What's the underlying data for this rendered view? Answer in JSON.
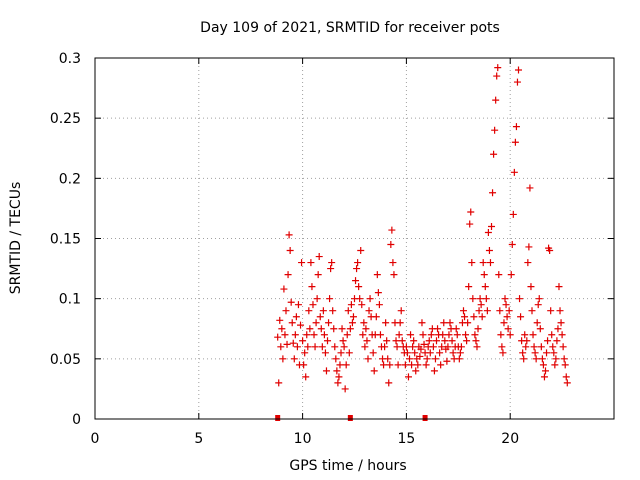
{
  "chart_data": {
    "type": "scatter",
    "title": "Day 109 of 2021, SRMTID for receiver pots",
    "xlabel": "GPS time / hours",
    "ylabel": "SRMTID / TECUs",
    "xlim": [
      0,
      25
    ],
    "ylim": [
      0,
      0.3
    ],
    "xticks": [
      0,
      5,
      10,
      15,
      20
    ],
    "yticks": [
      0,
      0.05,
      0.1,
      0.15,
      0.2,
      0.25,
      0.3
    ],
    "x_tick_labels": [
      "0",
      "5",
      "10",
      "15",
      "20"
    ],
    "y_tick_labels": [
      "0",
      "0.05",
      "0.1",
      "0.15",
      "0.2",
      "0.25",
      "0.3"
    ],
    "grid": true,
    "marker": "+",
    "color": "#e00000",
    "baseline_marks_x": [
      8.8,
      12.3,
      15.9
    ],
    "series": [
      {
        "name": "SRMTID",
        "points": [
          [
            8.8,
            0.068
          ],
          [
            8.85,
            0.03
          ],
          [
            8.9,
            0.082
          ],
          [
            8.95,
            0.06
          ],
          [
            9.0,
            0.075
          ],
          [
            9.05,
            0.05
          ],
          [
            9.1,
            0.108
          ],
          [
            9.15,
            0.07
          ],
          [
            9.2,
            0.09
          ],
          [
            9.25,
            0.062
          ],
          [
            9.3,
            0.12
          ],
          [
            9.35,
            0.153
          ],
          [
            9.4,
            0.14
          ],
          [
            9.45,
            0.097
          ],
          [
            9.5,
            0.08
          ],
          [
            9.55,
            0.063
          ],
          [
            9.6,
            0.05
          ],
          [
            9.65,
            0.07
          ],
          [
            9.7,
            0.085
          ],
          [
            9.75,
            0.06
          ],
          [
            9.8,
            0.095
          ],
          [
            9.85,
            0.045
          ],
          [
            9.9,
            0.078
          ],
          [
            9.95,
            0.13
          ],
          [
            10.0,
            0.065
          ],
          [
            10.05,
            0.045
          ],
          [
            10.1,
            0.055
          ],
          [
            10.15,
            0.035
          ],
          [
            10.2,
            0.07
          ],
          [
            10.25,
            0.06
          ],
          [
            10.3,
            0.09
          ],
          [
            10.35,
            0.075
          ],
          [
            10.4,
            0.13
          ],
          [
            10.45,
            0.11
          ],
          [
            10.5,
            0.095
          ],
          [
            10.55,
            0.07
          ],
          [
            10.6,
            0.06
          ],
          [
            10.65,
            0.08
          ],
          [
            10.7,
            0.1
          ],
          [
            10.75,
            0.12
          ],
          [
            10.8,
            0.135
          ],
          [
            10.85,
            0.085
          ],
          [
            10.9,
            0.075
          ],
          [
            10.95,
            0.06
          ],
          [
            11.0,
            0.09
          ],
          [
            11.05,
            0.07
          ],
          [
            11.1,
            0.055
          ],
          [
            11.15,
            0.04
          ],
          [
            11.2,
            0.065
          ],
          [
            11.25,
            0.08
          ],
          [
            11.3,
            0.1
          ],
          [
            11.35,
            0.125
          ],
          [
            11.4,
            0.13
          ],
          [
            11.45,
            0.09
          ],
          [
            11.5,
            0.075
          ],
          [
            11.55,
            0.06
          ],
          [
            11.6,
            0.05
          ],
          [
            11.65,
            0.04
          ],
          [
            11.7,
            0.03
          ],
          [
            11.75,
            0.035
          ],
          [
            11.8,
            0.045
          ],
          [
            11.85,
            0.055
          ],
          [
            11.9,
            0.075
          ],
          [
            11.95,
            0.065
          ],
          [
            12.0,
            0.06
          ],
          [
            12.05,
            0.025
          ],
          [
            12.1,
            0.045
          ],
          [
            12.15,
            0.07
          ],
          [
            12.2,
            0.09
          ],
          [
            12.25,
            0.055
          ],
          [
            12.3,
            0.075
          ],
          [
            12.35,
            0.095
          ],
          [
            12.4,
            0.08
          ],
          [
            12.45,
            0.085
          ],
          [
            12.5,
            0.1
          ],
          [
            12.55,
            0.115
          ],
          [
            12.6,
            0.125
          ],
          [
            12.65,
            0.13
          ],
          [
            12.7,
            0.11
          ],
          [
            12.75,
            0.1
          ],
          [
            12.8,
            0.14
          ],
          [
            12.85,
            0.095
          ],
          [
            12.9,
            0.07
          ],
          [
            12.95,
            0.08
          ],
          [
            13.0,
            0.06
          ],
          [
            13.05,
            0.075
          ],
          [
            13.1,
            0.065
          ],
          [
            13.15,
            0.05
          ],
          [
            13.2,
            0.09
          ],
          [
            13.25,
            0.1
          ],
          [
            13.3,
            0.085
          ],
          [
            13.35,
            0.07
          ],
          [
            13.4,
            0.055
          ],
          [
            13.45,
            0.04
          ],
          [
            13.5,
            0.07
          ],
          [
            13.55,
            0.085
          ],
          [
            13.6,
            0.12
          ],
          [
            13.65,
            0.105
          ],
          [
            13.7,
            0.095
          ],
          [
            13.75,
            0.07
          ],
          [
            13.8,
            0.06
          ],
          [
            13.85,
            0.05
          ],
          [
            13.9,
            0.045
          ],
          [
            13.95,
            0.06
          ],
          [
            14.0,
            0.08
          ],
          [
            14.05,
            0.065
          ],
          [
            14.1,
            0.05
          ],
          [
            14.15,
            0.03
          ],
          [
            14.2,
            0.045
          ],
          [
            14.25,
            0.145
          ],
          [
            14.3,
            0.157
          ],
          [
            14.35,
            0.13
          ],
          [
            14.4,
            0.12
          ],
          [
            14.45,
            0.08
          ],
          [
            14.5,
            0.065
          ],
          [
            14.55,
            0.06
          ],
          [
            14.6,
            0.045
          ],
          [
            14.65,
            0.07
          ],
          [
            14.7,
            0.08
          ],
          [
            14.75,
            0.09
          ],
          [
            14.8,
            0.065
          ],
          [
            14.85,
            0.06
          ],
          [
            14.9,
            0.055
          ],
          [
            14.95,
            0.045
          ],
          [
            15.0,
            0.06
          ],
          [
            15.05,
            0.055
          ],
          [
            15.1,
            0.035
          ],
          [
            15.15,
            0.05
          ],
          [
            15.2,
            0.07
          ],
          [
            15.25,
            0.045
          ],
          [
            15.3,
            0.06
          ],
          [
            15.35,
            0.065
          ],
          [
            15.4,
            0.055
          ],
          [
            15.45,
            0.04
          ],
          [
            15.5,
            0.05
          ],
          [
            15.55,
            0.045
          ],
          [
            15.6,
            0.06
          ],
          [
            15.65,
            0.052
          ],
          [
            15.7,
            0.058
          ],
          [
            15.75,
            0.08
          ],
          [
            15.8,
            0.07
          ],
          [
            15.85,
            0.062
          ],
          [
            15.9,
            0.055
          ],
          [
            15.95,
            0.045
          ],
          [
            16.0,
            0.05
          ],
          [
            16.05,
            0.06
          ],
          [
            16.1,
            0.065
          ],
          [
            16.15,
            0.055
          ],
          [
            16.2,
            0.07
          ],
          [
            16.25,
            0.075
          ],
          [
            16.3,
            0.06
          ],
          [
            16.35,
            0.04
          ],
          [
            16.4,
            0.05
          ],
          [
            16.45,
            0.065
          ],
          [
            16.5,
            0.075
          ],
          [
            16.55,
            0.07
          ],
          [
            16.6,
            0.055
          ],
          [
            16.65,
            0.045
          ],
          [
            16.7,
            0.06
          ],
          [
            16.75,
            0.07
          ],
          [
            16.8,
            0.08
          ],
          [
            16.85,
            0.065
          ],
          [
            16.9,
            0.058
          ],
          [
            16.95,
            0.048
          ],
          [
            17.0,
            0.06
          ],
          [
            17.05,
            0.07
          ],
          [
            17.1,
            0.08
          ],
          [
            17.15,
            0.075
          ],
          [
            17.2,
            0.065
          ],
          [
            17.25,
            0.055
          ],
          [
            17.3,
            0.05
          ],
          [
            17.35,
            0.06
          ],
          [
            17.4,
            0.075
          ],
          [
            17.45,
            0.07
          ],
          [
            17.5,
            0.06
          ],
          [
            17.55,
            0.05
          ],
          [
            17.6,
            0.055
          ],
          [
            17.65,
            0.06
          ],
          [
            17.7,
            0.08
          ],
          [
            17.75,
            0.09
          ],
          [
            17.8,
            0.085
          ],
          [
            17.85,
            0.07
          ],
          [
            17.9,
            0.065
          ],
          [
            17.95,
            0.08
          ],
          [
            18.0,
            0.11
          ],
          [
            18.05,
            0.162
          ],
          [
            18.1,
            0.172
          ],
          [
            18.15,
            0.13
          ],
          [
            18.2,
            0.1
          ],
          [
            18.25,
            0.085
          ],
          [
            18.3,
            0.07
          ],
          [
            18.35,
            0.065
          ],
          [
            18.4,
            0.06
          ],
          [
            18.45,
            0.075
          ],
          [
            18.5,
            0.09
          ],
          [
            18.55,
            0.1
          ],
          [
            18.6,
            0.095
          ],
          [
            18.65,
            0.085
          ],
          [
            18.7,
            0.13
          ],
          [
            18.75,
            0.12
          ],
          [
            18.8,
            0.11
          ],
          [
            18.85,
            0.1
          ],
          [
            18.9,
            0.09
          ],
          [
            18.95,
            0.155
          ],
          [
            19.0,
            0.14
          ],
          [
            19.05,
            0.13
          ],
          [
            19.1,
            0.16
          ],
          [
            19.15,
            0.188
          ],
          [
            19.2,
            0.22
          ],
          [
            19.25,
            0.24
          ],
          [
            19.3,
            0.265
          ],
          [
            19.35,
            0.285
          ],
          [
            19.4,
            0.292
          ],
          [
            19.45,
            0.12
          ],
          [
            19.5,
            0.09
          ],
          [
            19.55,
            0.07
          ],
          [
            19.6,
            0.06
          ],
          [
            19.65,
            0.055
          ],
          [
            19.7,
            0.08
          ],
          [
            19.75,
            0.1
          ],
          [
            19.8,
            0.095
          ],
          [
            19.85,
            0.085
          ],
          [
            19.9,
            0.075
          ],
          [
            19.95,
            0.09
          ],
          [
            20.0,
            0.07
          ],
          [
            20.05,
            0.12
          ],
          [
            20.1,
            0.145
          ],
          [
            20.15,
            0.17
          ],
          [
            20.2,
            0.205
          ],
          [
            20.25,
            0.23
          ],
          [
            20.3,
            0.243
          ],
          [
            20.35,
            0.28
          ],
          [
            20.4,
            0.29
          ],
          [
            20.45,
            0.1
          ],
          [
            20.5,
            0.085
          ],
          [
            20.55,
            0.065
          ],
          [
            20.6,
            0.055
          ],
          [
            20.65,
            0.05
          ],
          [
            20.7,
            0.07
          ],
          [
            20.75,
            0.06
          ],
          [
            20.8,
            0.065
          ],
          [
            20.85,
            0.13
          ],
          [
            20.9,
            0.143
          ],
          [
            20.95,
            0.192
          ],
          [
            21.0,
            0.11
          ],
          [
            21.05,
            0.09
          ],
          [
            21.1,
            0.07
          ],
          [
            21.15,
            0.06
          ],
          [
            21.2,
            0.055
          ],
          [
            21.25,
            0.05
          ],
          [
            21.3,
            0.08
          ],
          [
            21.35,
            0.095
          ],
          [
            21.4,
            0.1
          ],
          [
            21.45,
            0.075
          ],
          [
            21.5,
            0.06
          ],
          [
            21.55,
            0.05
          ],
          [
            21.6,
            0.045
          ],
          [
            21.65,
            0.035
          ],
          [
            21.7,
            0.04
          ],
          [
            21.75,
            0.055
          ],
          [
            21.8,
            0.065
          ],
          [
            21.85,
            0.142
          ],
          [
            21.9,
            0.14
          ],
          [
            21.95,
            0.09
          ],
          [
            22.0,
            0.07
          ],
          [
            22.05,
            0.06
          ],
          [
            22.1,
            0.055
          ],
          [
            22.15,
            0.045
          ],
          [
            22.2,
            0.05
          ],
          [
            22.25,
            0.065
          ],
          [
            22.3,
            0.075
          ],
          [
            22.35,
            0.11
          ],
          [
            22.4,
            0.09
          ],
          [
            22.45,
            0.08
          ],
          [
            22.5,
            0.07
          ],
          [
            22.55,
            0.06
          ],
          [
            22.6,
            0.05
          ],
          [
            22.65,
            0.045
          ],
          [
            22.7,
            0.035
          ],
          [
            22.75,
            0.03
          ]
        ]
      }
    ]
  }
}
